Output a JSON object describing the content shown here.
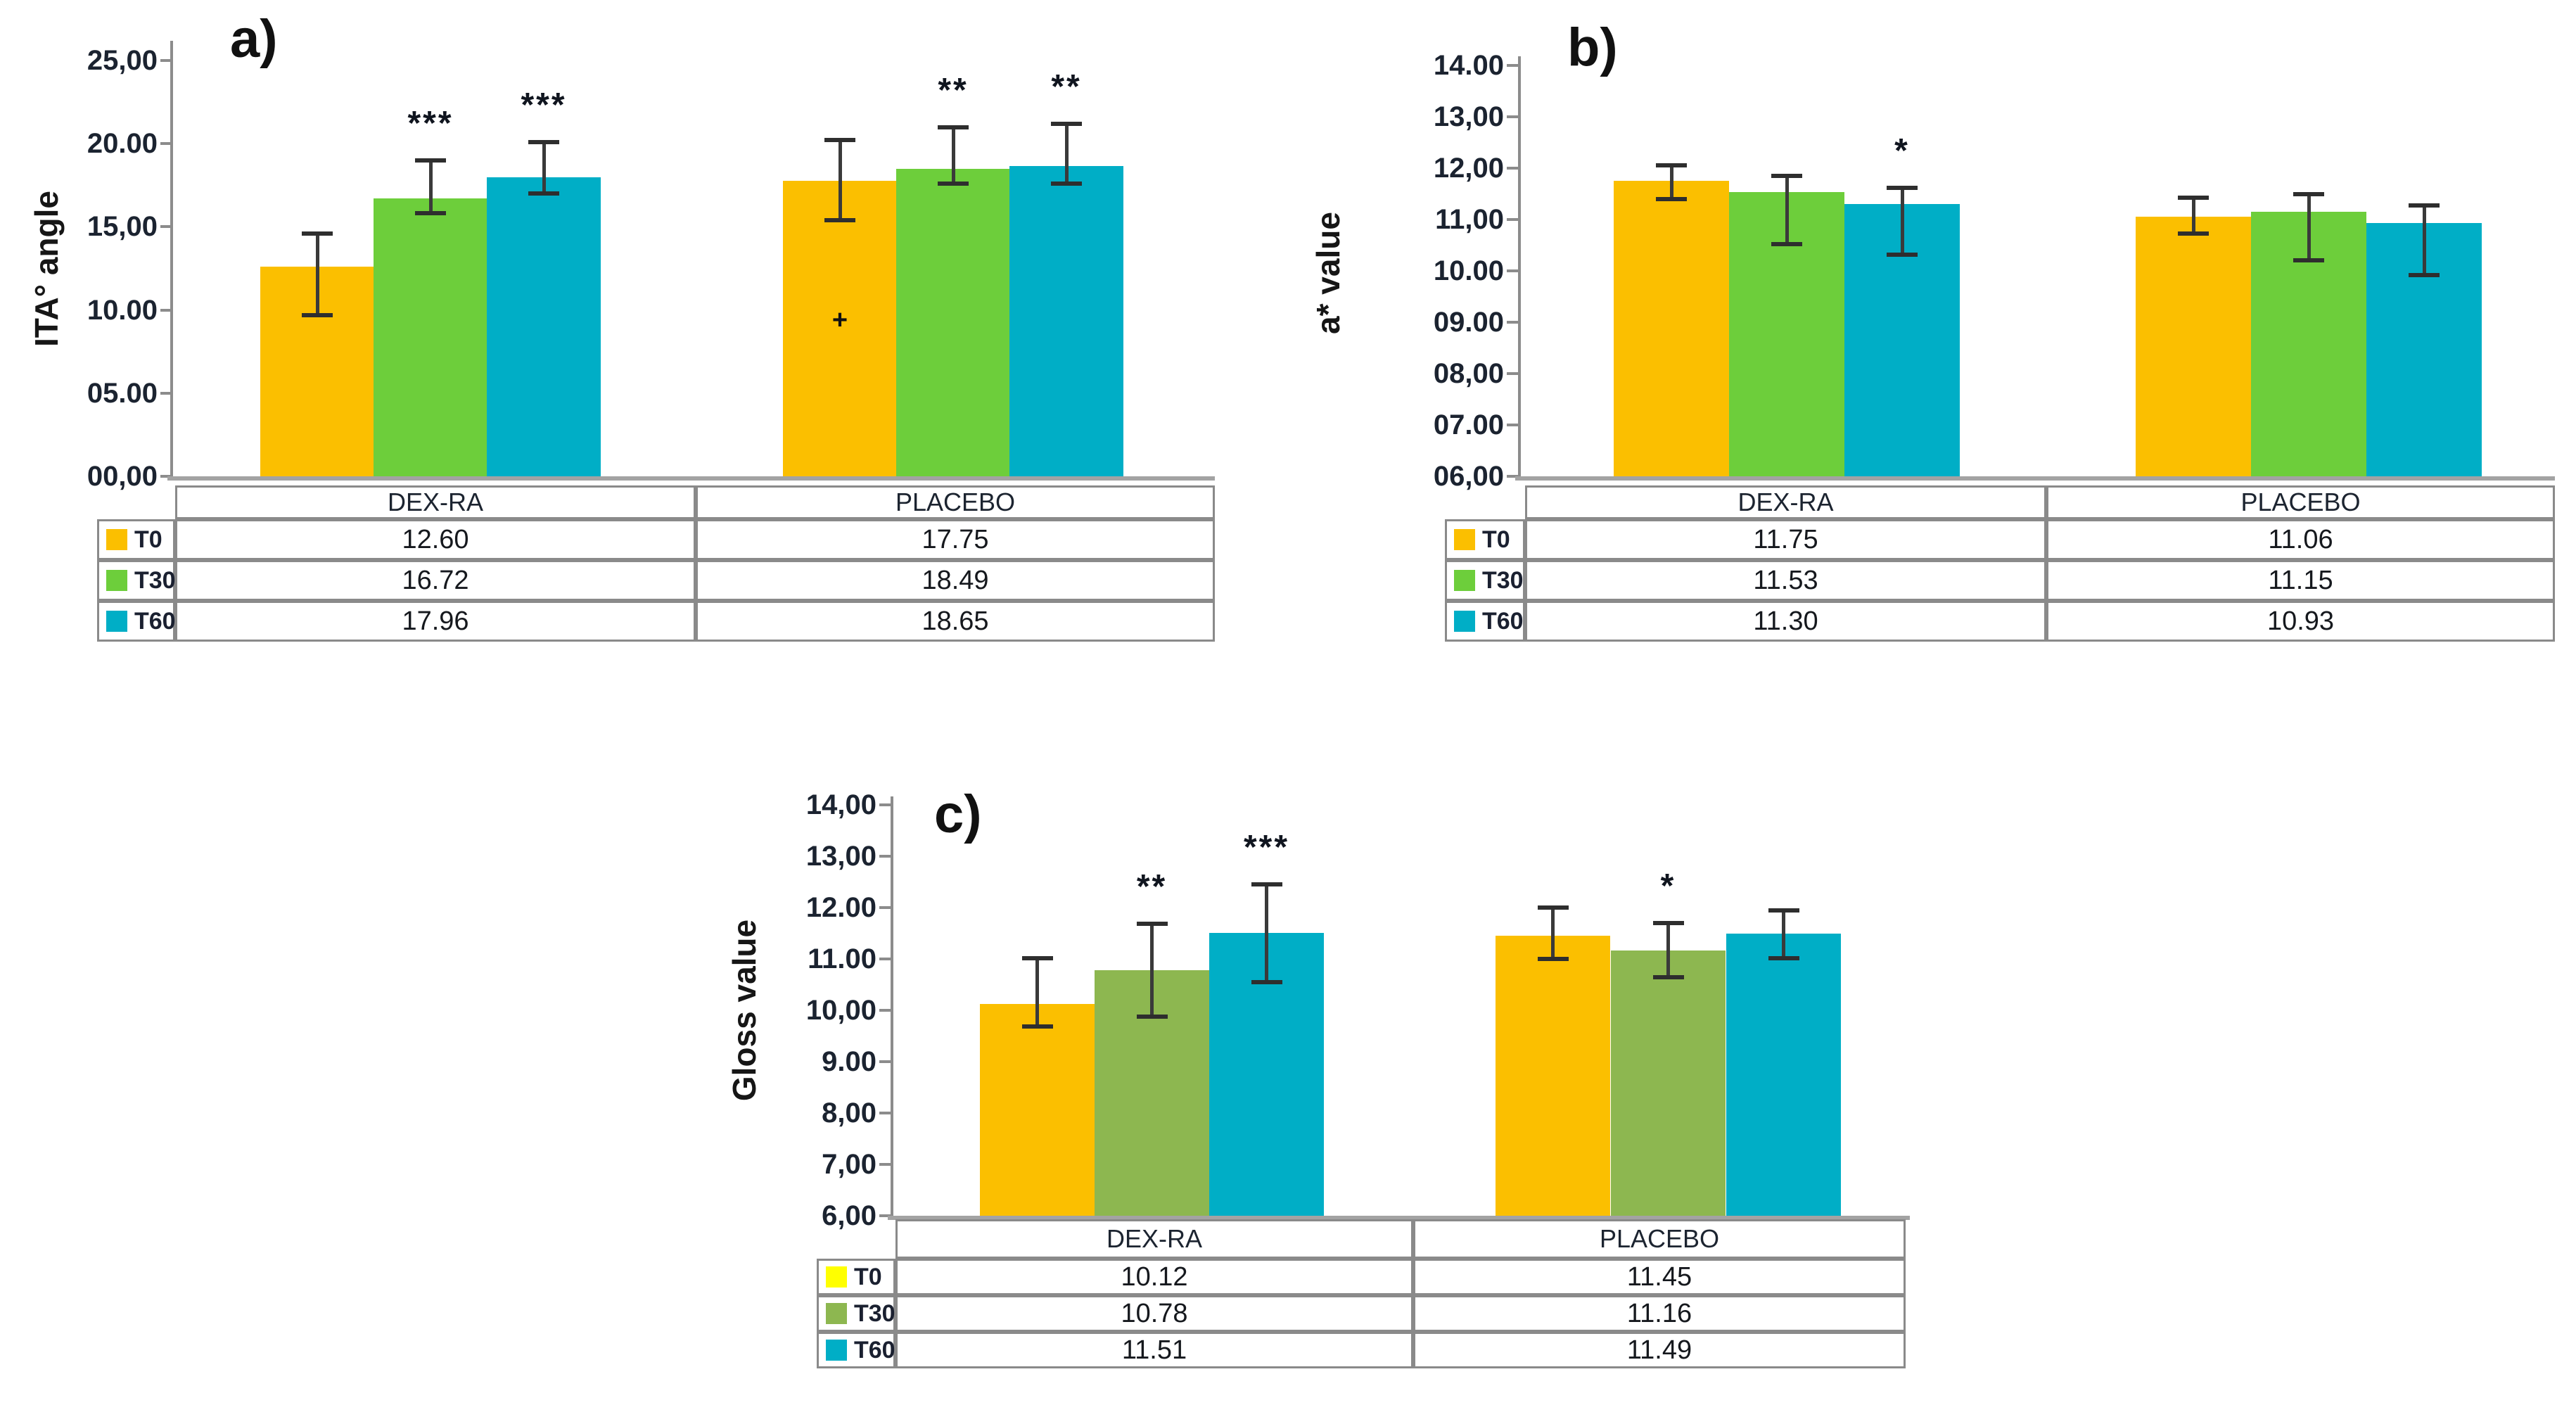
{
  "figure": {
    "description": "Three grouped bar charts with data tables",
    "categories": [
      "DEX-RA",
      "PLACEBO"
    ],
    "series_names": [
      "T0",
      "T30",
      "T60"
    ],
    "colors": {
      "t0_bar": "#FBBF00",
      "t30_bar_ab": "#6DCE3B",
      "t30_bar_c": "#8DB750",
      "t60_bar": "#00AEC6",
      "t0_legend_c": "#FFFF00",
      "axis_gray": "#8c8c8c",
      "error_bar": "#3a3a3a"
    }
  },
  "chart_data": [
    {
      "id": "a",
      "type": "bar",
      "panel_label": "a)",
      "ylabel": "ITA° angle",
      "ylim": [
        0,
        25
      ],
      "grid": false,
      "legend_position": "table-left",
      "ytick_values": [
        25,
        20,
        15,
        10,
        5,
        0
      ],
      "ytick_labels": [
        "25,00",
        "20.00",
        "15,00",
        "10.00",
        "05.00",
        "00,00"
      ],
      "categories": [
        "DEX-RA",
        "PLACEBO"
      ],
      "series": [
        {
          "name": "T0",
          "bar_color": "#FBBF00",
          "legend_color": "#FBBF00",
          "values": [
            12.6,
            17.75
          ],
          "display": [
            "12.60",
            "17.75"
          ],
          "err_low": [
            9.7,
            15.4
          ],
          "err_high": [
            14.6,
            20.2
          ]
        },
        {
          "name": "T30",
          "bar_color": "#6DCE3B",
          "legend_color": "#6DCE3B",
          "values": [
            16.72,
            18.49
          ],
          "display": [
            "16.72",
            "18.49"
          ],
          "err_low": [
            15.8,
            17.6
          ],
          "err_high": [
            19.0,
            21.0
          ]
        },
        {
          "name": "T60",
          "bar_color": "#00AEC6",
          "legend_color": "#00AEC6",
          "values": [
            17.96,
            18.65
          ],
          "display": [
            "17.96",
            "18.65"
          ],
          "err_low": [
            17.0,
            17.6
          ],
          "err_high": [
            20.1,
            21.2
          ]
        }
      ],
      "significance": [
        {
          "group": 0,
          "series": 1,
          "label": "***"
        },
        {
          "group": 0,
          "series": 2,
          "label": "***"
        },
        {
          "group": 1,
          "series": 1,
          "label": "**"
        },
        {
          "group": 1,
          "series": 2,
          "label": "**"
        }
      ],
      "point_marker": {
        "group": 1,
        "series": 0,
        "label": "+",
        "value": 9.4
      }
    },
    {
      "id": "b",
      "type": "bar",
      "panel_label": "b)",
      "ylabel": "a* value",
      "ylim": [
        6,
        14
      ],
      "grid": false,
      "legend_position": "table-left",
      "ytick_values": [
        14,
        13,
        12,
        11,
        10,
        9,
        8,
        7,
        6
      ],
      "ytick_labels": [
        "14.00",
        "13,00",
        "12,00",
        "11,00",
        "10.00",
        "09.00",
        "08,00",
        "07.00",
        "06,00"
      ],
      "categories": [
        "DEX-RA",
        "PLACEBO"
      ],
      "series": [
        {
          "name": "T0",
          "bar_color": "#FBBF00",
          "legend_color": "#FBBF00",
          "values": [
            11.75,
            11.06
          ],
          "display": [
            "11.75",
            "11.06"
          ],
          "err_low": [
            11.4,
            10.72
          ],
          "err_high": [
            12.05,
            11.42
          ]
        },
        {
          "name": "T30",
          "bar_color": "#6DCE3B",
          "legend_color": "#6DCE3B",
          "values": [
            11.53,
            11.15
          ],
          "display": [
            "11.53",
            "11.15"
          ],
          "err_low": [
            10.52,
            10.2
          ],
          "err_high": [
            11.85,
            11.5
          ]
        },
        {
          "name": "T60",
          "bar_color": "#00AEC6",
          "legend_color": "#00AEC6",
          "values": [
            11.3,
            10.93
          ],
          "display": [
            "11.30",
            "10.93"
          ],
          "err_low": [
            10.32,
            9.92
          ],
          "err_high": [
            11.62,
            11.28
          ]
        }
      ],
      "significance": [
        {
          "group": 0,
          "series": 2,
          "label": "*"
        }
      ],
      "point_marker": null
    },
    {
      "id": "c",
      "type": "bar",
      "panel_label": "c)",
      "ylabel": "Gloss value",
      "ylim": [
        6,
        14
      ],
      "grid": false,
      "legend_position": "table-left",
      "ytick_values": [
        14,
        13,
        12,
        11,
        10,
        9,
        8,
        7,
        6
      ],
      "ytick_labels": [
        "14,00",
        "13,00",
        "12.00",
        "11.00",
        "10,00",
        "9.00",
        "8,00",
        "7,00",
        "6,00"
      ],
      "categories": [
        "DEX-RA",
        "PLACEBO"
      ],
      "series": [
        {
          "name": "T0",
          "bar_color": "#FBBF00",
          "legend_color": "#FFFF00",
          "values": [
            10.12,
            11.45
          ],
          "display": [
            "10.12",
            "11.45"
          ],
          "err_low": [
            9.68,
            11.0
          ],
          "err_high": [
            11.02,
            12.0
          ]
        },
        {
          "name": "T30",
          "bar_color": "#8DB750",
          "legend_color": "#8DB750",
          "values": [
            10.78,
            11.16
          ],
          "display": [
            "10.78",
            "11.16"
          ],
          "err_low": [
            9.88,
            10.65
          ],
          "err_high": [
            11.68,
            11.7
          ]
        },
        {
          "name": "T60",
          "bar_color": "#00AEC6",
          "legend_color": "#00AEC6",
          "values": [
            11.51,
            11.49
          ],
          "display": [
            "11.51",
            "11.49"
          ],
          "err_low": [
            10.55,
            11.02
          ],
          "err_high": [
            12.45,
            11.95
          ]
        }
      ],
      "significance": [
        {
          "group": 0,
          "series": 1,
          "label": "**"
        },
        {
          "group": 0,
          "series": 2,
          "label": "***"
        },
        {
          "group": 1,
          "series": 1,
          "label": "*"
        }
      ],
      "point_marker": null
    }
  ]
}
